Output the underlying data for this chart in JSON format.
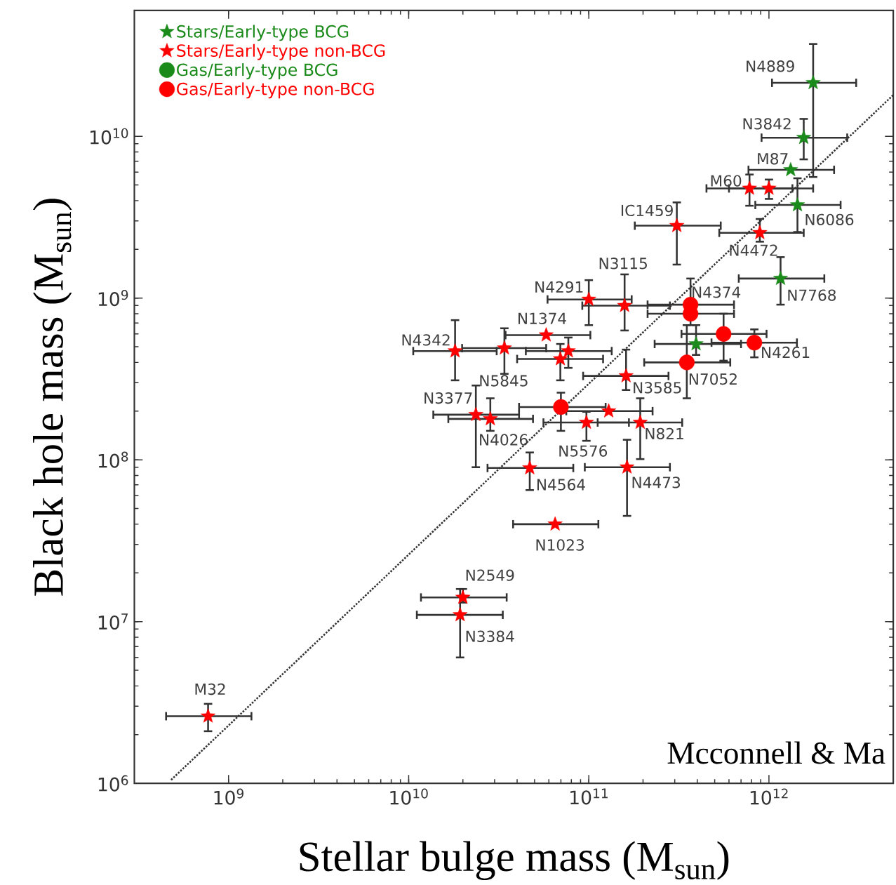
{
  "chart_data": {
    "type": "scatter",
    "xlabel": "Stellar bulge mass (M$_{sun}$)",
    "ylabel": "Black hole mass (M$_{sun}$)",
    "log": "xy",
    "legend": "top left",
    "xlim": [
      300000000.0,
      4900000000000.0
    ],
    "ylim": [
      1000000.0,
      60000000000.0
    ],
    "xticks": [
      {
        "value": 1000000000.0,
        "label": "10$^{9}$"
      },
      {
        "value": 10000000000.0,
        "label": "10$^{10}$"
      },
      {
        "value": 100000000000.0,
        "label": "10$^{11}$"
      },
      {
        "value": 1000000000000.0,
        "label": "10$^{12}$"
      }
    ],
    "yticks": [
      {
        "value": 1000000.0,
        "label": "10$^{6}$"
      },
      {
        "value": 10000000.0,
        "label": "10$^{7}$"
      },
      {
        "value": 100000000.0,
        "label": "10$^{8}$"
      },
      {
        "value": 1000000000.0,
        "label": "10$^{9}$"
      },
      {
        "value": 10000000000.0,
        "label": "10$^{10}$"
      }
    ],
    "series": [
      {
        "name": "Stars/Early-type BCG",
        "color": "#1a8a1a",
        "marker": "star",
        "x": [
          1760000000000.0,
          1560000000000.0,
          1320000000000.0,
          1440000000000.0,
          1160000000000.0,
          394000000000.0
        ],
        "values": [
          21400000000.0,
          9800000000.0,
          6200000000.0,
          3760000000.0,
          1320000000.0,
          520000000.0
        ],
        "xerrors": [
          [
            1040000000000.0,
            3050000000000.0
          ],
          [
            910000000000.0,
            2720000000000.0
          ],
          [
            770000000000.0,
            2300000000000.0
          ],
          [
            840000000000.0,
            2500000000000.0
          ],
          [
            680000000000.0,
            2030000000000.0
          ],
          [
            232000000000.0,
            700000000000.0
          ]
        ],
        "errors": [
          [
            5600000000.0,
            37200000000.0
          ],
          [
            7200000000.0,
            12800000000.0
          ],
          null,
          [
            2560000000.0,
            5500000000.0
          ],
          [
            910000000.0,
            1790000000.0
          ],
          [
            445000000.0,
            680000000.0
          ]
        ]
      },
      {
        "name": "Stars/Early-type non-BCG",
        "color": "#ff0000",
        "marker": "star",
        "x": [
          780000000000.0,
          1000000000000.0,
          308000000000.0,
          890000000000.0,
          100000000000.0,
          158000000000.0,
          58000000000.0,
          18100000000.0,
          34000000000.0,
          77000000000.0,
          69500000000.0,
          161000000000.0,
          23600000000.0,
          28400000000.0,
          97000000000.0,
          129000000000.0,
          193000000000.0,
          47000000000.0,
          163000000000.0,
          65000000000.0,
          20000000000.0,
          19300000000.0,
          770000000.0
        ],
        "values": [
          4760000000.0,
          4760000000.0,
          2800000000.0,
          2530000000.0,
          980000000.0,
          897000000.0,
          590000000.0,
          470000000.0,
          490000000.0,
          470000000.0,
          420000000.0,
          330000000.0,
          190000000.0,
          179000000.0,
          170000000.0,
          200000000.0,
          170000000.0,
          89000000.0,
          90000000.0,
          40000000.0,
          14100000.0,
          11000000.0,
          2600000.0
        ],
        "xerrors": [
          [
            450000000000.0,
            1350000000000.0
          ],
          [
            600000000000.0,
            1760000000000.0
          ],
          [
            180000000000.0,
            540000000000.0
          ],
          [
            530000000000.0,
            1560000000000.0
          ],
          [
            59000000000.0,
            173000000000.0
          ],
          [
            92000000000.0,
            282000000000.0
          ],
          [
            34500000000.0,
            102000000000.0
          ],
          [
            10600000000.0,
            30800000000.0
          ],
          [
            19800000000.0,
            58000000000.0
          ],
          [
            44700000000.0,
            134000000000.0
          ],
          [
            40000000000.0,
            120000000000.0
          ],
          [
            93000000000.0,
            277000000000.0
          ],
          [
            13700000000.0,
            41000000000.0
          ],
          [
            16600000000.0,
            49000000000.0
          ],
          [
            56000000000.0,
            167000000000.0
          ],
          [
            75000000000.0,
            226000000000.0
          ],
          [
            112000000000.0,
            330000000000.0
          ],
          [
            27400000000.0,
            82000000000.0
          ],
          [
            95000000000.0,
            282000000000.0
          ],
          [
            38000000000.0,
            113000000000.0
          ],
          [
            11700000000.0,
            35000000000.0
          ],
          [
            11100000000.0,
            33300000000.0
          ],
          [
            450000000.0,
            1340000000.0
          ]
        ],
        "errors": [
          [
            3720000000.0,
            5800000000.0
          ],
          [
            4100000000.0,
            5400000000.0
          ],
          [
            1610000000.0,
            3900000000.0
          ],
          [
            2230000000.0,
            3080000000.0
          ],
          [
            680000000.0,
            1290000000.0
          ],
          [
            630000000.0,
            1400000000.0
          ],
          null,
          [
            310000000.0,
            730000000.0
          ],
          [
            340000000.0,
            650000000.0
          ],
          [
            370000000.0,
            570000000.0
          ],
          [
            310000000.0,
            520000000.0
          ],
          [
            270000000.0,
            480000000.0
          ],
          [
            90000000.0,
            288000000.0
          ],
          [
            151000000.0,
            240000000.0
          ],
          [
            131000000.0,
            198000000.0
          ],
          null,
          [
            101000000.0,
            240000000.0
          ],
          [
            65000000.0,
            111000000.0
          ],
          [
            45000000.0,
            133000000.0
          ],
          null,
          [
            13100000.0,
            15900000.0
          ],
          [
            6000000.0,
            15900000.0
          ],
          [
            2100000.0,
            3100000.0
          ]
        ]
      },
      {
        "name": "Gas/Early-type BCG",
        "color": "#1a8a1a",
        "marker": "circle"
      },
      {
        "name": "Gas/Early-type non-BCG",
        "color": "#ff0000",
        "marker": "circle",
        "x": [
          70000000000.0,
          367000000000.0,
          367000000000.0,
          560000000000.0,
          830000000000.0,
          350000000000.0
        ],
        "values": [
          212000000.0,
          910000000.0,
          800000000.0,
          600000000.0,
          530000000.0,
          400000000.0
        ],
        "xerrors": [
          [
            41000000000.0,
            124000000000.0
          ],
          [
            212000000000.0,
            640000000000.0
          ],
          [
            212000000000.0,
            640000000000.0
          ],
          [
            327000000000.0,
            970000000000.0
          ],
          [
            480000000000.0,
            1430000000000.0
          ],
          [
            203000000000.0,
            610000000000.0
          ]
        ],
        "errors": [
          [
            151000000.0,
            260000000.0
          ],
          [
            680000000.0,
            1320000000.0
          ],
          null,
          [
            410000000.0,
            800000000.0
          ],
          [
            430000000.0,
            640000000.0
          ],
          [
            240000000.0,
            680000000.0
          ]
        ]
      },
      {
        "type": "line",
        "color": "#333333",
        "line_style": "dotted",
        "x": [
          480000000.0,
          4900000000000.0
        ],
        "values": [
          1050000.0,
          18000000000.0
        ]
      }
    ],
    "annotations": [
      {
        "text": "N4889",
        "x": 1760000000000.0,
        "y": 21400000000.0
      },
      {
        "text": "N3842",
        "x": 1560000000000.0,
        "y": 9800000000.0
      },
      {
        "text": "M87",
        "x": 1320000000000.0,
        "y": 6200000000.0
      },
      {
        "text": "M60",
        "x": 780000000000.0,
        "y": 4760000000.0
      },
      {
        "text": "N6086",
        "x": 1440000000000.0,
        "y": 3760000000.0
      },
      {
        "text": "IC1459",
        "x": 308000000000.0,
        "y": 2800000000.0
      },
      {
        "text": "N4472",
        "x": 890000000000.0,
        "y": 2530000000.0
      },
      {
        "text": "N7768",
        "x": 1160000000000.0,
        "y": 1320000000.0
      },
      {
        "text": "N3115",
        "x": 158000000000.0,
        "y": 897000000.0
      },
      {
        "text": "N4291",
        "x": 100000000000.0,
        "y": 980000000.0
      },
      {
        "text": "N4374",
        "x": 367000000000.0,
        "y": 910000000.0
      },
      {
        "text": "N1374",
        "x": 58000000000.0,
        "y": 590000000.0
      },
      {
        "text": "N4342",
        "x": 18100000000.0,
        "y": 470000000.0
      },
      {
        "text": "N5845",
        "x": 34000000000.0,
        "y": 490000000.0
      },
      {
        "text": "N4261",
        "x": 830000000000.0,
        "y": 530000000.0
      },
      {
        "text": "N7052",
        "x": 350000000000.0,
        "y": 400000000.0
      },
      {
        "text": "N3585",
        "x": 161000000000.0,
        "y": 330000000.0
      },
      {
        "text": "N3377",
        "x": 23600000000.0,
        "y": 190000000.0
      },
      {
        "text": "N4026",
        "x": 28400000000.0,
        "y": 179000000.0
      },
      {
        "text": "N5576",
        "x": 97000000000.0,
        "y": 170000000.0
      },
      {
        "text": "N821",
        "x": 193000000000.0,
        "y": 170000000.0
      },
      {
        "text": "N4564",
        "x": 47000000000.0,
        "y": 89000000.0
      },
      {
        "text": "N4473",
        "x": 163000000000.0,
        "y": 90000000.0
      },
      {
        "text": "N1023",
        "x": 65000000000.0,
        "y": 40000000.0
      },
      {
        "text": "N2549",
        "x": 20000000000.0,
        "y": 14100000.0
      },
      {
        "text": "N3384",
        "x": 19300000000.0,
        "y": 11000000.0
      },
      {
        "text": "M32",
        "x": 770000000.0,
        "y": 2600000.0
      },
      "Mcconnell & Ma"
    ]
  }
}
